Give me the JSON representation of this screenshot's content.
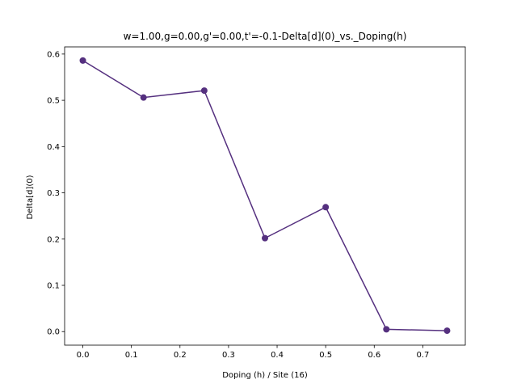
{
  "chart_data": {
    "type": "line",
    "title": "w=1.00,g=0.00,g'=0.00,t'=-0.1-Delta[d](0)_vs._Doping(h)",
    "xlabel": "Doping (h) / Site (16)",
    "ylabel": "Delta[d](0)",
    "xlim": [
      -0.0375,
      0.7875
    ],
    "ylim": [
      -0.0293,
      0.6155
    ],
    "xticks": [
      0.0,
      0.1,
      0.2,
      0.3,
      0.4,
      0.5,
      0.6,
      0.7
    ],
    "xtick_labels": [
      "0.0",
      "0.1",
      "0.2",
      "0.3",
      "0.4",
      "0.5",
      "0.6",
      "0.7"
    ],
    "yticks": [
      0.0,
      0.1,
      0.2,
      0.3,
      0.4,
      0.5,
      0.6
    ],
    "ytick_labels": [
      "0.0",
      "0.1",
      "0.2",
      "0.3",
      "0.4",
      "0.5",
      "0.6"
    ],
    "grid": false,
    "series": [
      {
        "color": "#55307f",
        "marker": "circle",
        "x": [
          0.0,
          0.125,
          0.25,
          0.375,
          0.5,
          0.625,
          0.75
        ],
        "y": [
          0.586,
          0.506,
          0.521,
          0.202,
          0.269,
          0.005,
          0.002
        ]
      }
    ]
  }
}
